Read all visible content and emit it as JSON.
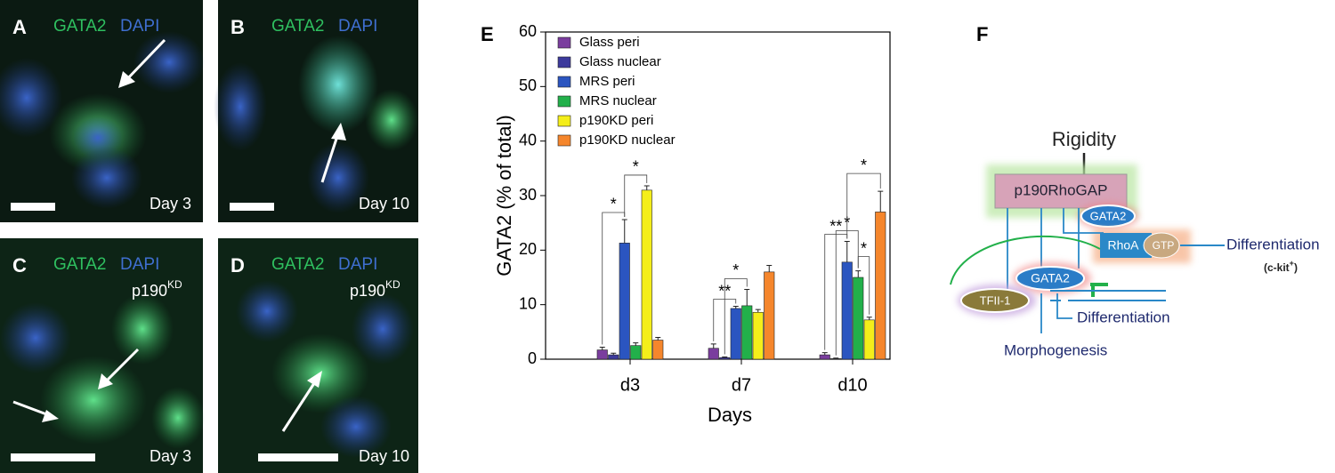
{
  "panels": [
    {
      "letter": "A",
      "stain1": "GATA2",
      "stain2": "DAPI",
      "day": "Day 3"
    },
    {
      "letter": "B",
      "stain1": "GATA2",
      "stain2": "DAPI",
      "day": "Day 10"
    },
    {
      "letter": "C",
      "stain1": "GATA2",
      "stain2": "DAPI",
      "condition": {
        "base": "p190",
        "sup": "KD"
      },
      "day": "Day 3"
    },
    {
      "letter": "D",
      "stain1": "GATA2",
      "stain2": "DAPI",
      "condition": {
        "base": "p190",
        "sup": "KD"
      },
      "day": "Day 10"
    }
  ],
  "chart_data": {
    "type": "bar",
    "panel_letter": "E",
    "x_label": "Days",
    "y_label": "GATA2 (% of total)",
    "categories": [
      "d3",
      "d7",
      "d10"
    ],
    "ylim": [
      0,
      60
    ],
    "yticks": [
      0,
      10,
      20,
      30,
      40,
      50,
      60
    ],
    "legend": "top-left",
    "series": [
      {
        "name": "Glass peri",
        "color": "#7a3d9e",
        "values": [
          1.7,
          2.0,
          0.8
        ],
        "errors": [
          0.5,
          0.8,
          0.4
        ]
      },
      {
        "name": "Glass nuclear",
        "color": "#3c3a9c",
        "values": [
          0.8,
          0.3,
          0.1
        ],
        "errors": [
          0.3,
          0.1,
          0.1
        ]
      },
      {
        "name": "MRS peri",
        "color": "#2b55c0",
        "values": [
          21.3,
          9.3,
          17.8
        ],
        "errors": [
          4.3,
          0.4,
          3.8
        ]
      },
      {
        "name": "MRS nuclear",
        "color": "#22b04a",
        "values": [
          2.5,
          9.8,
          15.0
        ],
        "errors": [
          0.5,
          3.0,
          1.2
        ]
      },
      {
        "name": "p190KD peri",
        "color": "#f4ee1a",
        "values": [
          31.0,
          8.6,
          7.2
        ],
        "errors": [
          0.8,
          0.5,
          0.5
        ]
      },
      {
        "name": "p190KD nuclear",
        "color": "#f5862c",
        "values": [
          3.5,
          16.0,
          27.0
        ],
        "errors": [
          0.5,
          1.2,
          3.8
        ]
      }
    ],
    "annotations": [
      {
        "text": "*",
        "category": 0,
        "between": [
          0,
          2
        ]
      },
      {
        "text": "*",
        "category": 0,
        "between": [
          2,
          4
        ]
      },
      {
        "text": "**",
        "category": 1,
        "between": [
          0,
          2
        ]
      },
      {
        "text": "*",
        "category": 1,
        "between": [
          1,
          3
        ]
      },
      {
        "text": "**",
        "category": 2,
        "between": [
          0,
          2
        ]
      },
      {
        "text": "*",
        "category": 2,
        "between": [
          1,
          3
        ]
      },
      {
        "text": "*",
        "category": 2,
        "between": [
          3,
          4
        ]
      },
      {
        "text": "*",
        "category": 2,
        "between": [
          2,
          5
        ]
      }
    ]
  },
  "diagram": {
    "letter": "F",
    "rigidity": "Rigidity",
    "gap": "p190RhoGAP",
    "gata2_top": "GATA2",
    "rhoa": "RhoA",
    "gtp": "GTP",
    "differentiation_top": "Differentiation",
    "ckit": {
      "base": "(c-kit",
      "sup": "+",
      "close": ")"
    },
    "gata2_nuc": "GATA2",
    "tf": "TFII-1",
    "differentiation_bottom": "Differentiation",
    "morphogenesis": "Morphogenesis"
  }
}
